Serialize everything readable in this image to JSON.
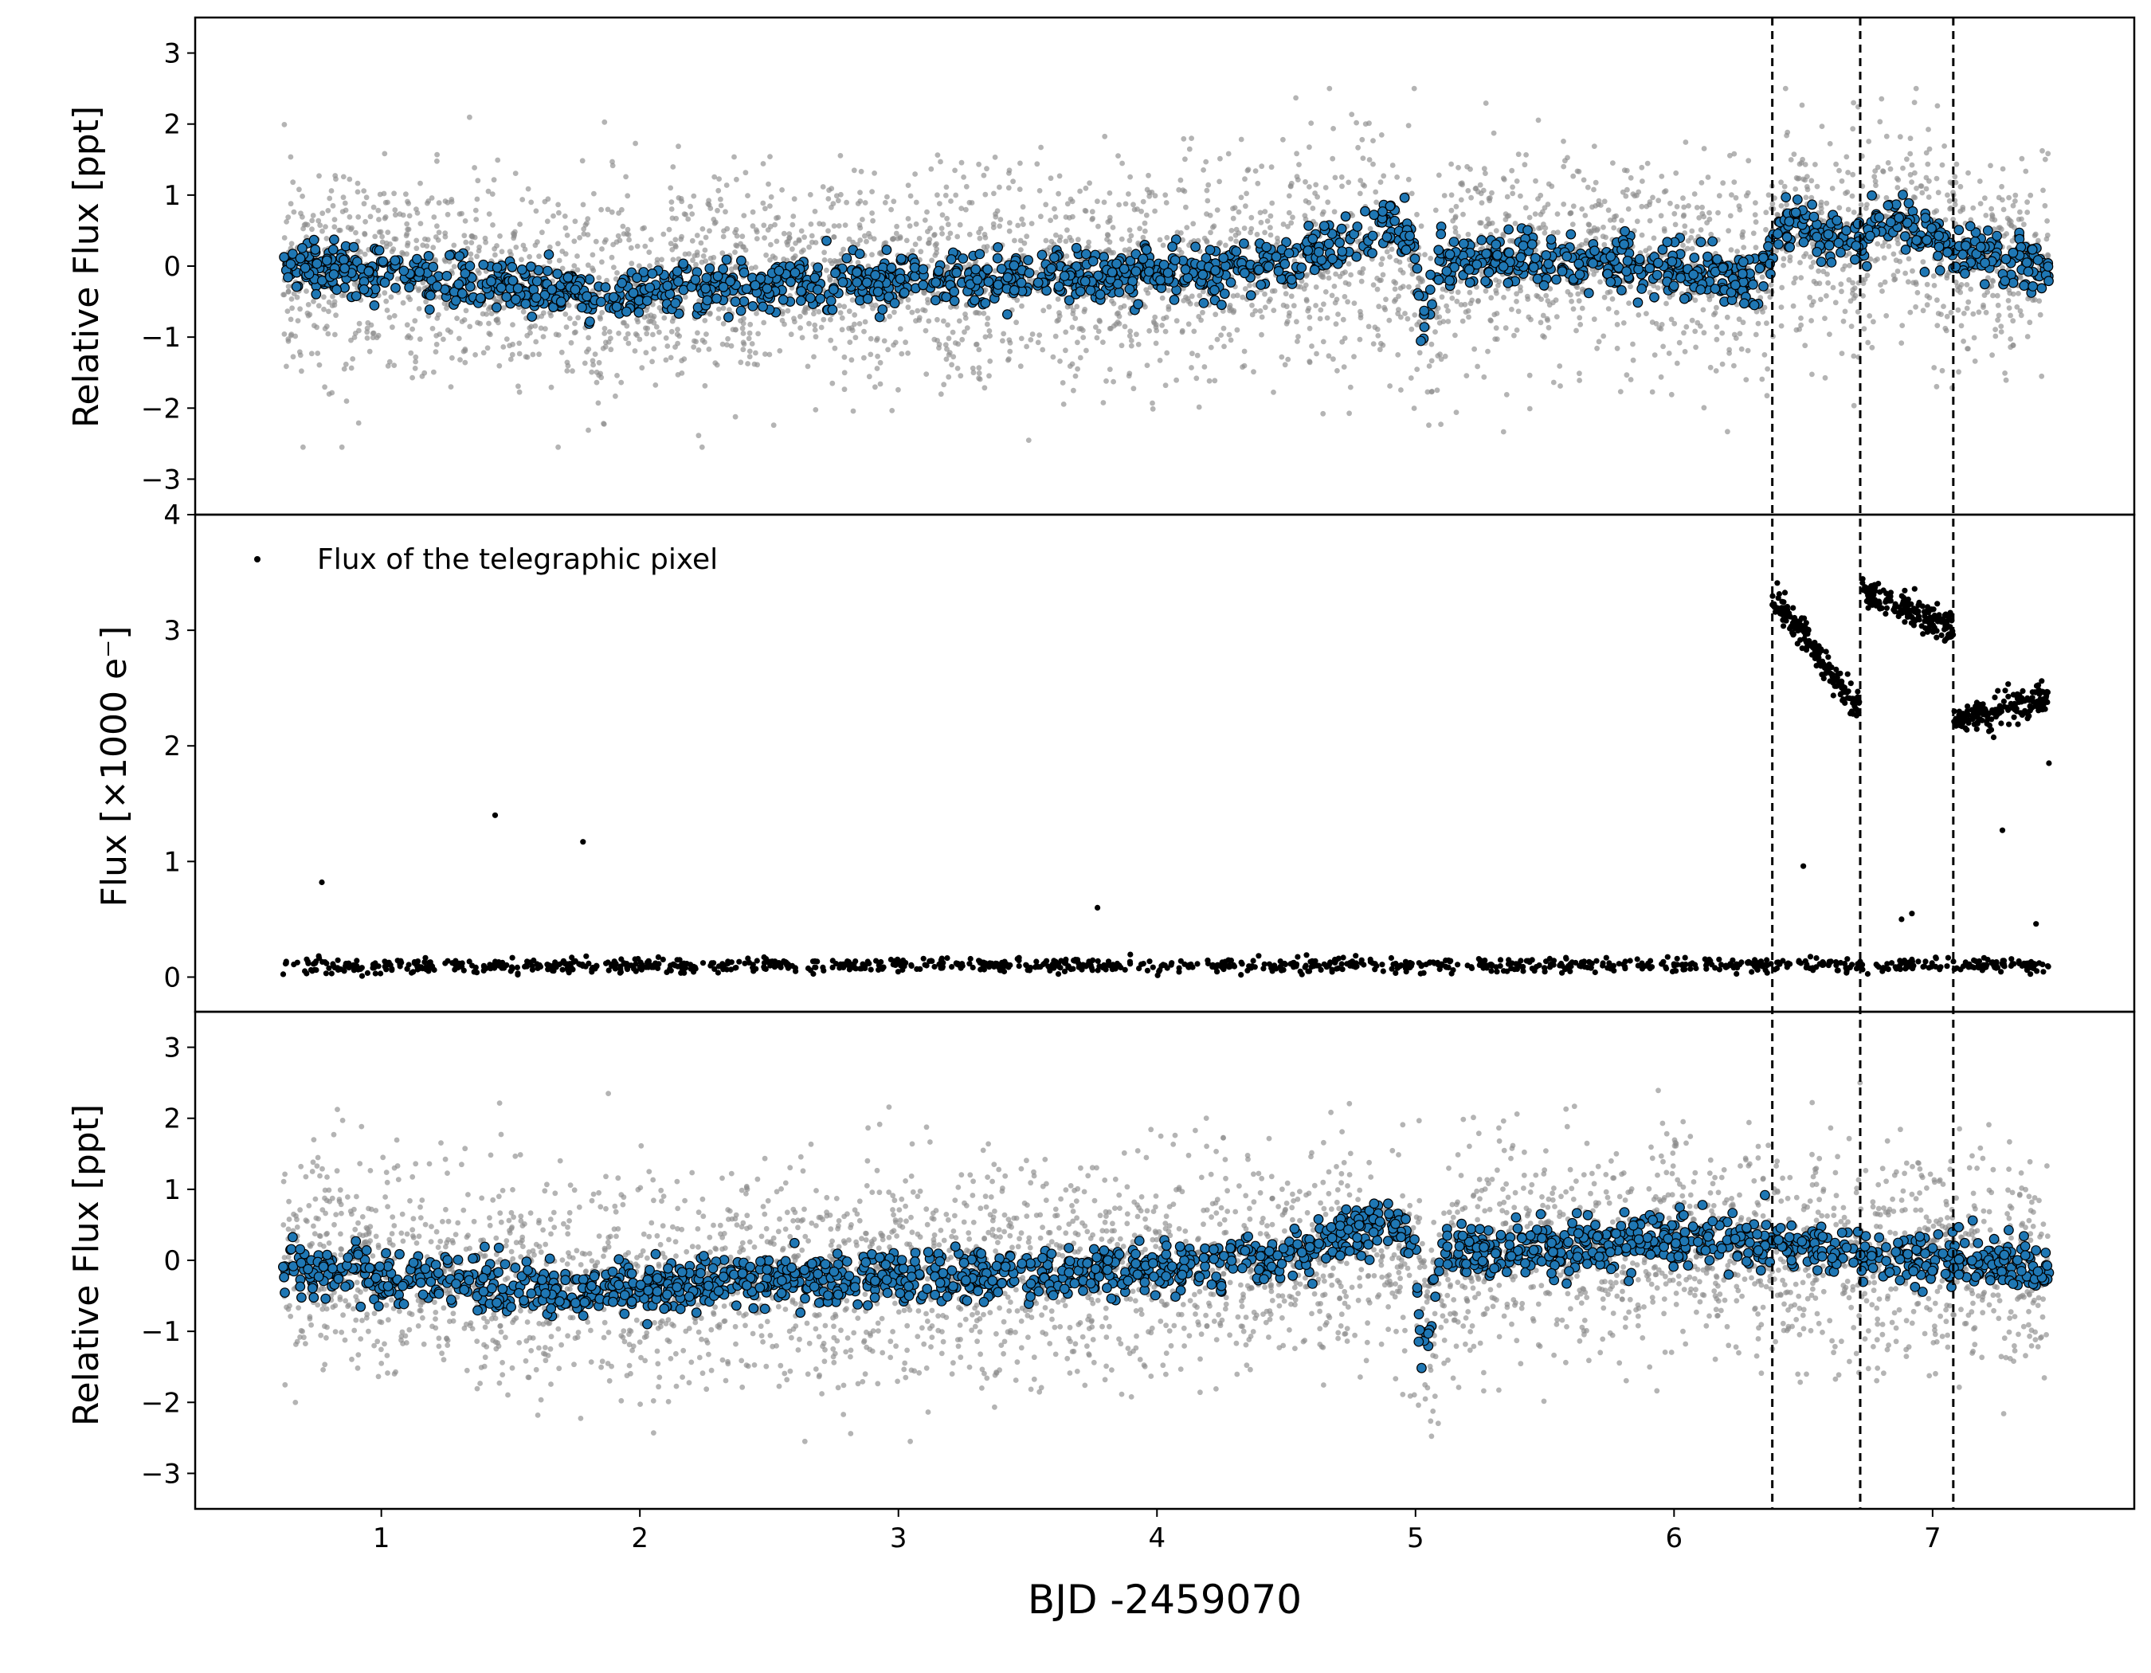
{
  "chart_data": [
    {
      "panel": "top",
      "type": "scatter",
      "ylabel": "Relative Flux [ppt]",
      "ylim": [
        -3.5,
        3.5
      ],
      "yticks": [
        -3,
        -2,
        -1,
        0,
        1,
        2,
        3
      ],
      "ytick_labels": [
        "−3",
        "−2",
        "−1",
        "0",
        "1",
        "2",
        "3"
      ],
      "xlim": [
        0.28,
        7.78
      ],
      "grid": false,
      "series": [
        {
          "role": "unbinned",
          "color": "#8c8c8c",
          "x_range": [
            0.62,
            7.45
          ],
          "scatter_std": 0.75,
          "trend": [
            [
              0.62,
              -0.05
            ],
            [
              1.0,
              -0.1
            ],
            [
              1.8,
              -0.35
            ],
            [
              2.5,
              -0.25
            ],
            [
              3.5,
              -0.2
            ],
            [
              4.5,
              0.0
            ],
            [
              5.0,
              0.2
            ],
            [
              5.05,
              -1.0
            ],
            [
              5.15,
              0.2
            ],
            [
              6.0,
              0.0
            ],
            [
              6.38,
              -0.1
            ],
            [
              6.42,
              0.5
            ],
            [
              6.7,
              0.35
            ],
            [
              6.8,
              0.6
            ],
            [
              7.08,
              0.2
            ],
            [
              7.45,
              0.0
            ]
          ]
        },
        {
          "role": "binned",
          "color": "#1f77b4",
          "edge_color": "#000000",
          "x_range": [
            0.62,
            7.45
          ],
          "scatter_std": 0.18,
          "trend": [
            [
              0.62,
              0.0
            ],
            [
              1.0,
              -0.1
            ],
            [
              1.8,
              -0.4
            ],
            [
              2.5,
              -0.25
            ],
            [
              3.5,
              -0.2
            ],
            [
              4.5,
              0.0
            ],
            [
              4.9,
              0.6
            ],
            [
              5.0,
              0.3
            ],
            [
              5.02,
              -0.8
            ],
            [
              5.1,
              0.1
            ],
            [
              6.0,
              0.0
            ],
            [
              6.3,
              -0.3
            ],
            [
              6.42,
              0.6
            ],
            [
              6.7,
              0.35
            ],
            [
              6.85,
              0.7
            ],
            [
              7.08,
              0.2
            ],
            [
              7.45,
              0.0
            ]
          ]
        }
      ]
    },
    {
      "panel": "middle",
      "type": "scatter",
      "ylabel": "Flux [×1000 e⁻]",
      "ylim": [
        -0.3,
        4.0
      ],
      "yticks": [
        0,
        1,
        2,
        3,
        4
      ],
      "ytick_labels": [
        "0",
        "1",
        "2",
        "3",
        "4"
      ],
      "xlim": [
        0.28,
        7.78
      ],
      "grid": false,
      "legend": {
        "label": "Flux of the telegraphic pixel",
        "loc": "upper left"
      },
      "series": [
        {
          "name": "Flux of the telegraphic pixel",
          "color": "#000000",
          "baseline": {
            "x_range": [
              0.62,
              7.45
            ],
            "value": 0.1,
            "scatter_std": 0.03
          },
          "high_segments": [
            {
              "x": [
                6.38,
                6.72
              ],
              "y_start": 3.3,
              "y_end": 2.3
            },
            {
              "x": [
                6.72,
                7.08
              ],
              "y_start": 3.35,
              "y_end": 3.0
            },
            {
              "x": [
                7.08,
                7.45
              ],
              "y_start": 2.2,
              "y_end": 2.4
            }
          ],
          "outliers": [
            [
              0.77,
              0.82
            ],
            [
              1.44,
              1.4
            ],
            [
              1.78,
              1.17
            ],
            [
              3.77,
              0.6
            ],
            [
              6.5,
              0.96
            ],
            [
              6.88,
              0.5
            ],
            [
              6.92,
              0.55
            ],
            [
              7.27,
              1.27
            ],
            [
              7.4,
              0.46
            ],
            [
              7.45,
              1.85
            ]
          ]
        }
      ]
    },
    {
      "panel": "bottom",
      "type": "scatter",
      "ylabel": "Relative Flux [ppt]",
      "xlabel": "BJD -2459070",
      "ylim": [
        -3.5,
        3.5
      ],
      "yticks": [
        -3,
        -2,
        -1,
        0,
        1,
        2,
        3
      ],
      "ytick_labels": [
        "−3",
        "−2",
        "−1",
        "0",
        "1",
        "2",
        "3"
      ],
      "xlim": [
        0.28,
        7.78
      ],
      "xticks": [
        1,
        2,
        3,
        4,
        5,
        6,
        7
      ],
      "xtick_labels": [
        "1",
        "2",
        "3",
        "4",
        "5",
        "6",
        "7"
      ],
      "grid": false,
      "series": [
        {
          "role": "unbinned",
          "color": "#8c8c8c",
          "x_range": [
            0.62,
            7.45
          ],
          "scatter_std": 0.75,
          "trend": [
            [
              0.62,
              -0.05
            ],
            [
              1.8,
              -0.35
            ],
            [
              2.5,
              -0.25
            ],
            [
              3.5,
              -0.2
            ],
            [
              4.5,
              0.0
            ],
            [
              5.0,
              0.2
            ],
            [
              5.05,
              -1.2
            ],
            [
              5.15,
              0.2
            ],
            [
              6.0,
              0.2
            ],
            [
              7.45,
              -0.1
            ]
          ]
        },
        {
          "role": "binned",
          "color": "#1f77b4",
          "edge_color": "#000000",
          "x_range": [
            0.62,
            7.45
          ],
          "scatter_std": 0.18,
          "trend": [
            [
              0.62,
              -0.1
            ],
            [
              1.8,
              -0.45
            ],
            [
              2.5,
              -0.25
            ],
            [
              3.5,
              -0.2
            ],
            [
              4.5,
              0.0
            ],
            [
              4.9,
              0.6
            ],
            [
              5.0,
              0.3
            ],
            [
              5.02,
              -1.5
            ],
            [
              5.1,
              0.1
            ],
            [
              6.0,
              0.3
            ],
            [
              6.5,
              0.2
            ],
            [
              7.0,
              0.0
            ],
            [
              7.45,
              -0.1
            ]
          ]
        }
      ]
    }
  ],
  "vertical_lines": {
    "x": [
      6.38,
      6.72,
      7.08
    ],
    "style": "dashed",
    "color": "#000000"
  }
}
